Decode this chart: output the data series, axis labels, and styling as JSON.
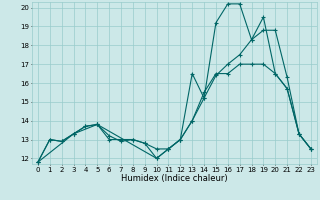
{
  "xlabel": "Humidex (Indice chaleur)",
  "bg_color": "#cce8e8",
  "grid_color": "#99cccc",
  "line_color": "#006666",
  "xlim": [
    -0.5,
    23.5
  ],
  "ylim": [
    11.7,
    20.3
  ],
  "yticks": [
    12,
    13,
    14,
    15,
    16,
    17,
    18,
    19,
    20
  ],
  "xticks": [
    0,
    1,
    2,
    3,
    4,
    5,
    6,
    7,
    8,
    9,
    10,
    11,
    12,
    13,
    14,
    15,
    16,
    17,
    18,
    19,
    20,
    21,
    22,
    23
  ],
  "lines": [
    {
      "x": [
        0,
        1,
        2,
        3,
        4,
        5,
        6,
        7,
        8,
        9,
        10,
        11,
        12,
        13,
        14,
        15,
        16,
        17,
        18,
        19,
        20,
        21,
        22,
        23
      ],
      "y": [
        11.8,
        13.0,
        12.9,
        13.3,
        13.7,
        13.8,
        13.0,
        13.0,
        13.0,
        12.8,
        12.0,
        12.5,
        13.0,
        16.5,
        15.2,
        19.2,
        20.2,
        20.2,
        18.3,
        19.5,
        16.5,
        15.7,
        13.3,
        12.5
      ]
    },
    {
      "x": [
        0,
        1,
        2,
        3,
        4,
        5,
        6,
        7,
        8,
        9,
        10,
        11,
        12,
        13,
        14,
        15,
        16,
        17,
        18,
        19,
        20,
        21,
        22,
        23
      ],
      "y": [
        11.8,
        13.0,
        12.9,
        13.3,
        13.7,
        13.8,
        13.2,
        12.9,
        13.0,
        12.8,
        12.5,
        12.5,
        13.0,
        14.0,
        15.5,
        16.5,
        16.5,
        17.0,
        17.0,
        17.0,
        16.5,
        15.7,
        13.3,
        12.5
      ]
    },
    {
      "x": [
        0,
        3,
        5,
        10,
        11,
        12,
        13,
        14,
        15,
        16,
        17,
        18,
        19,
        20,
        21,
        22,
        23
      ],
      "y": [
        11.8,
        13.3,
        13.8,
        12.0,
        12.5,
        13.0,
        14.0,
        15.2,
        16.4,
        17.0,
        17.5,
        18.3,
        18.8,
        18.8,
        16.3,
        13.3,
        12.5
      ]
    }
  ]
}
